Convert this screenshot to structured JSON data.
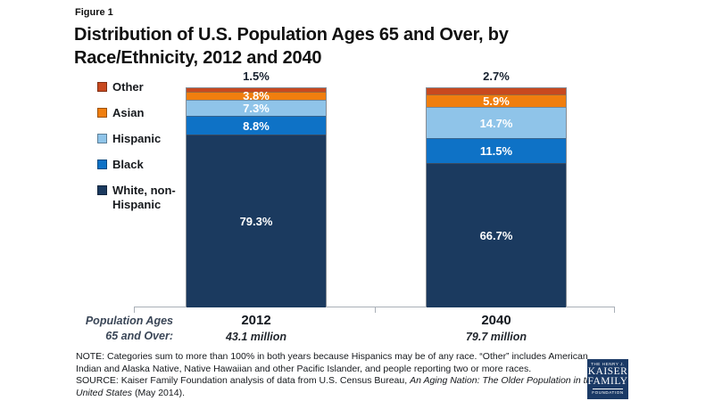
{
  "header": {
    "figure_label": "Figure 1",
    "title": "Distribution of U.S. Population Ages 65 and Over, by\nRace/Ethnicity, 2012 and 2040"
  },
  "chart_data": {
    "type": "bar",
    "subtype": "100%-stacked-column",
    "title": "Distribution of U.S. Population Ages 65 and Over, by Race/Ethnicity, 2012 and 2040",
    "categories": [
      "2012",
      "2040"
    ],
    "category_sublabels": [
      "43.1 million",
      "79.7 million"
    ],
    "stack_order_top_to_bottom": [
      "Other",
      "Asian",
      "Hispanic",
      "Black",
      "White, non-Hispanic"
    ],
    "series": [
      {
        "name": "Other",
        "color": "#c8491f",
        "values": [
          1.5,
          2.7
        ]
      },
      {
        "name": "Asian",
        "color": "#f07e0e",
        "values": [
          3.8,
          5.9
        ]
      },
      {
        "name": "Hispanic",
        "color": "#8fc4e9",
        "values": [
          7.3,
          14.7
        ]
      },
      {
        "name": "Black",
        "color": "#0e72c6",
        "values": [
          8.8,
          11.5
        ]
      },
      {
        "name": "White, non-Hispanic",
        "color": "#1b3a5f",
        "values": [
          79.3,
          66.7
        ]
      }
    ],
    "value_suffix": "%",
    "legend_position": "left",
    "grid": false,
    "axis_caption": "Population Ages\n65 and Over:"
  },
  "footnotes": {
    "note": "NOTE: Categories sum to more than 100% in both years because Hispanics may be of any race. “Other” includes American Indian and Alaska Native, Native Hawaiian and other Pacific Islander, and people reporting two or more races.",
    "source_prefix": "SOURCE: Kaiser Family Foundation analysis of data from U.S. Census Bureau, ",
    "source_italic": "An Aging Nation: The Older Population in the United States",
    "source_suffix": " (May 2014)."
  },
  "logo": {
    "line1": "THE HENRY J.",
    "line2": "KAISER",
    "line3": "FAMILY",
    "line4": "FOUNDATION"
  }
}
